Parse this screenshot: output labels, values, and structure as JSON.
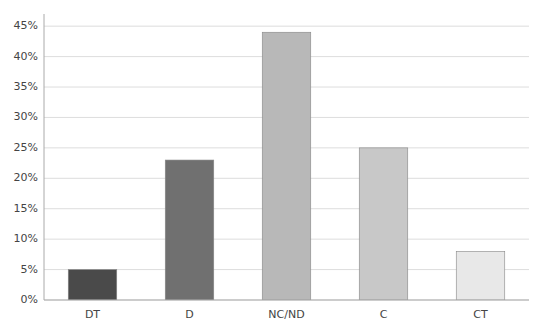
{
  "chart_data": {
    "type": "bar",
    "categories": [
      "DT",
      "D",
      "NC/ND",
      "C",
      "CT"
    ],
    "values": [
      5,
      23,
      44,
      25,
      8
    ],
    "colors": [
      "#4a4a4a",
      "#707070",
      "#b8b8b8",
      "#c8c8c8",
      "#e8e8e8"
    ],
    "ylim": [
      0,
      47
    ],
    "yticks": [
      {
        "value": 0,
        "label": "0%"
      },
      {
        "value": 5,
        "label": "5%"
      },
      {
        "value": 10,
        "label": "10%"
      },
      {
        "value": 15,
        "label": "15%"
      },
      {
        "value": 20,
        "label": "20%"
      },
      {
        "value": 25,
        "label": "25%"
      },
      {
        "value": 30,
        "label": "30%"
      },
      {
        "value": 35,
        "label": "35%"
      },
      {
        "value": 40,
        "label": "40%"
      },
      {
        "value": 45,
        "label": "45%"
      }
    ],
    "grid": true
  }
}
